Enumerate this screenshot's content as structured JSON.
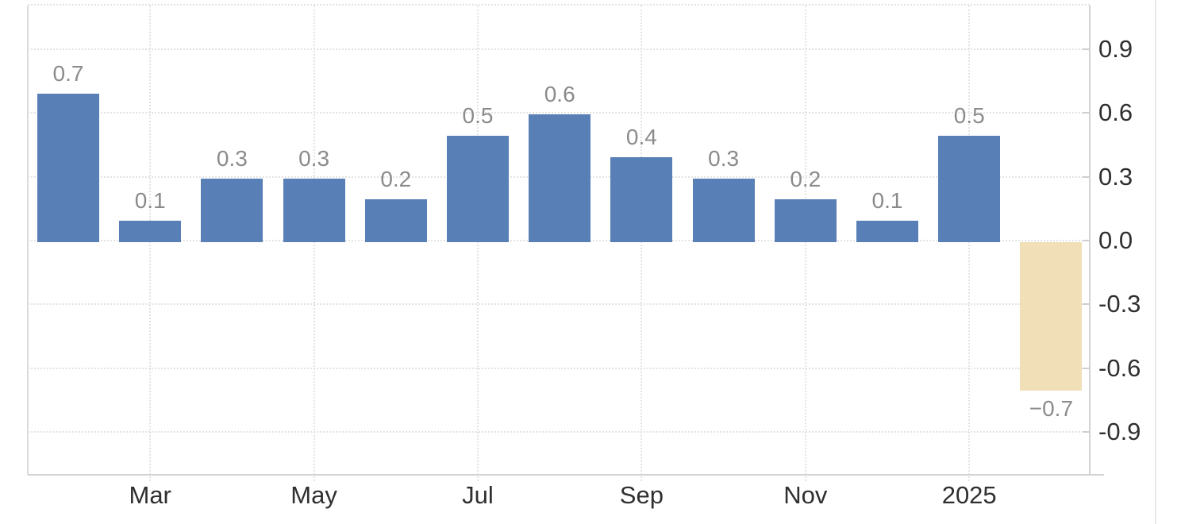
{
  "chart_data": {
    "type": "bar",
    "title": "",
    "values": [
      0.7,
      0.1,
      0.3,
      0.3,
      0.2,
      0.5,
      0.6,
      0.4,
      0.3,
      0.2,
      0.1,
      0.5,
      -0.7
    ],
    "bar_value_labels": [
      "0.7",
      "0.1",
      "0.3",
      "0.3",
      "0.2",
      "0.5",
      "0.6",
      "0.4",
      "0.3",
      "0.2",
      "0.1",
      "0.5",
      "−0.7"
    ],
    "x_axis": {
      "tick_labels": [
        "Mar",
        "May",
        "Jul",
        "Sep",
        "Nov",
        "2025"
      ],
      "labeled_bar_indices": [
        1,
        3,
        5,
        7,
        9,
        11
      ]
    },
    "y_axis": {
      "side": "right",
      "tick_values": [
        0.9,
        0.6,
        0.3,
        0.0,
        -0.3,
        -0.6,
        -0.9
      ],
      "tick_labels": [
        "0.9",
        "0.6",
        "0.3",
        "0.0",
        "-0.3",
        "-0.6",
        "-0.9"
      ],
      "range": [
        -1.1,
        1.1
      ]
    },
    "grid": "dotted",
    "legend": "none",
    "colors": {
      "bar": "#587fb6",
      "last_bar": "#f0dfb7",
      "value_label": "#8b8b8b",
      "axis_label": "#2f2f2f",
      "gridline": "#e3e3e3",
      "axis_line": "#d3d3d3",
      "background": "#ffffff"
    }
  }
}
